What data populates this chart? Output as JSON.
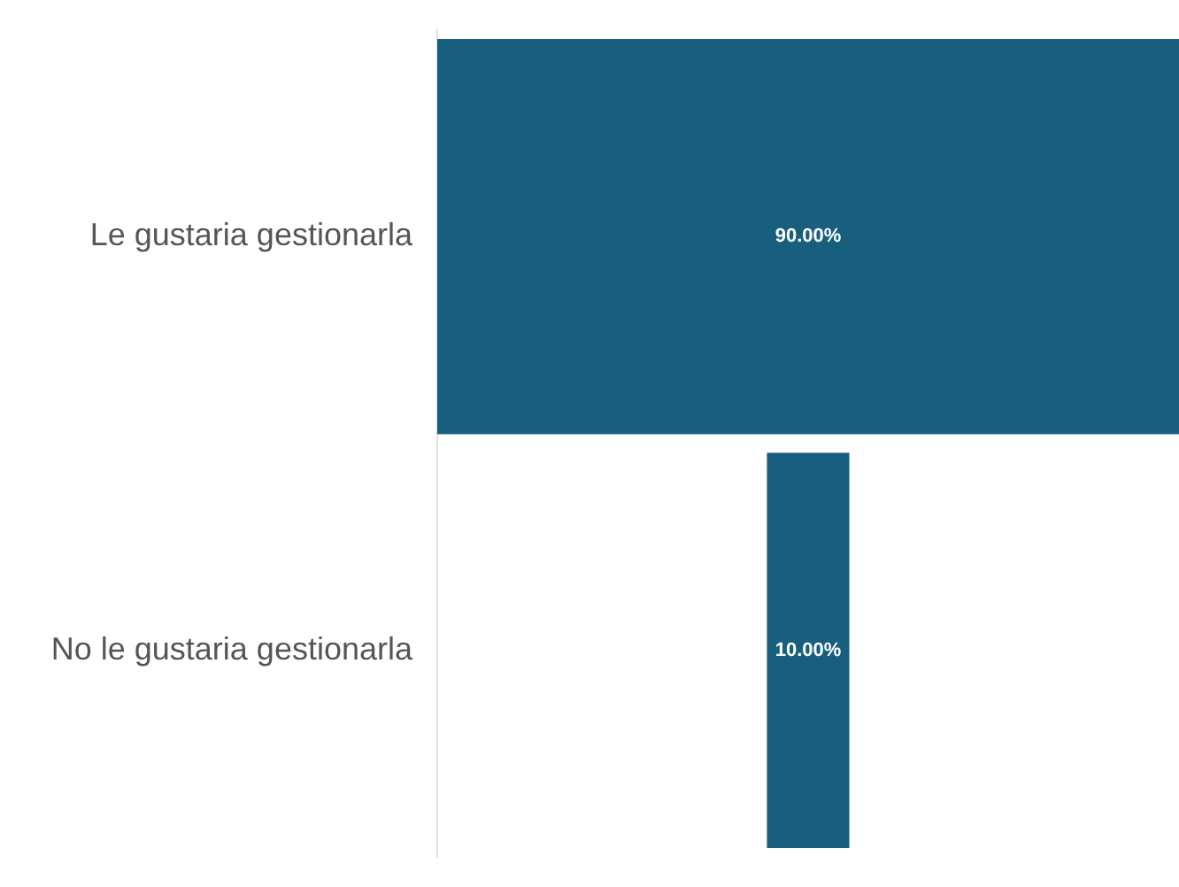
{
  "chart_data": {
    "type": "other",
    "categories": [
      "Le gustaria gestionarla",
      "No le gustaria gestionarla"
    ],
    "values": [
      90,
      10
    ],
    "color": "#175e7f",
    "value_labels": [
      "90.00%",
      "10.00%"
    ]
  }
}
